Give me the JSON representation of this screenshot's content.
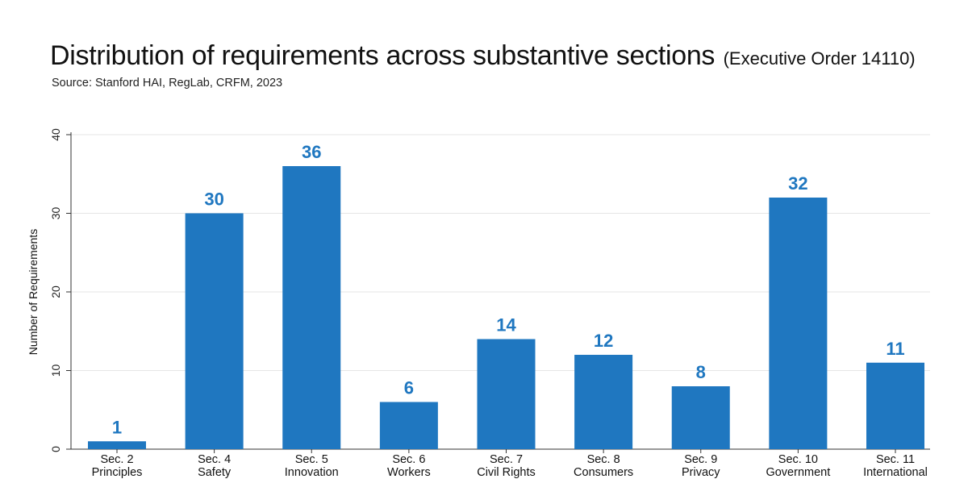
{
  "header": {
    "title": "Distribution of requirements across substantive sections",
    "title_suffix": "(Executive Order 14110)",
    "source": "Source: Stanford HAI, RegLab, CRFM, 2023"
  },
  "chart_data": {
    "type": "bar",
    "title": "Distribution of requirements across substantive sections",
    "subtitle": "(Executive Order 14110)",
    "xlabel": "",
    "ylabel": "Number of Requirements",
    "ylim": [
      0,
      40
    ],
    "yticks": [
      0,
      10,
      20,
      30,
      40
    ],
    "grid": true,
    "bar_color": "#1f77c0",
    "label_color": "#1f77c0",
    "categories": [
      [
        "Sec. 2",
        "Principles"
      ],
      [
        "Sec. 4",
        "Safety"
      ],
      [
        "Sec. 5",
        "Innovation"
      ],
      [
        "Sec. 6",
        "Workers"
      ],
      [
        "Sec. 7",
        "Civil Rights"
      ],
      [
        "Sec. 8",
        "Consumers"
      ],
      [
        "Sec. 9",
        "Privacy"
      ],
      [
        "Sec. 10",
        "Government"
      ],
      [
        "Sec. 11",
        "International"
      ]
    ],
    "values": [
      1,
      30,
      36,
      6,
      14,
      12,
      8,
      32,
      11
    ]
  }
}
